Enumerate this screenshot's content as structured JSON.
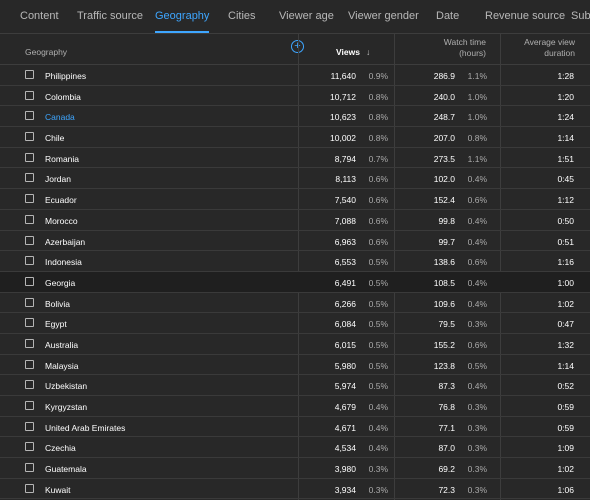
{
  "tabs": [
    {
      "label": "Content",
      "active": false
    },
    {
      "label": "Traffic source",
      "active": false
    },
    {
      "label": "Geography",
      "active": true
    },
    {
      "label": "Cities",
      "active": false
    },
    {
      "label": "Viewer age",
      "active": false
    },
    {
      "label": "Viewer gender",
      "active": false
    },
    {
      "label": "Date",
      "active": false
    },
    {
      "label": "Revenue source",
      "active": false
    },
    {
      "label": "Subs",
      "active": false
    }
  ],
  "header": {
    "geography": "Geography",
    "views": "Views",
    "sort_icon": "arrow-down-icon",
    "watch_time_line1": "Watch time",
    "watch_time_line2": "(hours)",
    "avg_view_line1": "Average view",
    "avg_view_line2": "duration",
    "add_icon": "plus-circle-icon"
  },
  "colors": {
    "accent": "#3ea6ff",
    "background": "#282828",
    "highlight_row": "#1f1f1f"
  },
  "rows": [
    {
      "country": "Philippines",
      "views": "11,640",
      "views_pct": "0.9%",
      "watch": "286.9",
      "watch_pct": "1.1%",
      "avg": "1:28",
      "link": false,
      "highlight": false
    },
    {
      "country": "Colombia",
      "views": "10,712",
      "views_pct": "0.8%",
      "watch": "240.0",
      "watch_pct": "1.0%",
      "avg": "1:20",
      "link": false,
      "highlight": false
    },
    {
      "country": "Canada",
      "views": "10,623",
      "views_pct": "0.8%",
      "watch": "248.7",
      "watch_pct": "1.0%",
      "avg": "1:24",
      "link": true,
      "highlight": false
    },
    {
      "country": "Chile",
      "views": "10,002",
      "views_pct": "0.8%",
      "watch": "207.0",
      "watch_pct": "0.8%",
      "avg": "1:14",
      "link": false,
      "highlight": false
    },
    {
      "country": "Romania",
      "views": "8,794",
      "views_pct": "0.7%",
      "watch": "273.5",
      "watch_pct": "1.1%",
      "avg": "1:51",
      "link": false,
      "highlight": false
    },
    {
      "country": "Jordan",
      "views": "8,113",
      "views_pct": "0.6%",
      "watch": "102.0",
      "watch_pct": "0.4%",
      "avg": "0:45",
      "link": false,
      "highlight": false
    },
    {
      "country": "Ecuador",
      "views": "7,540",
      "views_pct": "0.6%",
      "watch": "152.4",
      "watch_pct": "0.6%",
      "avg": "1:12",
      "link": false,
      "highlight": false
    },
    {
      "country": "Morocco",
      "views": "7,088",
      "views_pct": "0.6%",
      "watch": "99.8",
      "watch_pct": "0.4%",
      "avg": "0:50",
      "link": false,
      "highlight": false
    },
    {
      "country": "Azerbaijan",
      "views": "6,963",
      "views_pct": "0.6%",
      "watch": "99.7",
      "watch_pct": "0.4%",
      "avg": "0:51",
      "link": false,
      "highlight": false
    },
    {
      "country": "Indonesia",
      "views": "6,553",
      "views_pct": "0.5%",
      "watch": "138.6",
      "watch_pct": "0.6%",
      "avg": "1:16",
      "link": false,
      "highlight": false
    },
    {
      "country": "Georgia",
      "views": "6,491",
      "views_pct": "0.5%",
      "watch": "108.5",
      "watch_pct": "0.4%",
      "avg": "1:00",
      "link": false,
      "highlight": true
    },
    {
      "country": "Bolivia",
      "views": "6,266",
      "views_pct": "0.5%",
      "watch": "109.6",
      "watch_pct": "0.4%",
      "avg": "1:02",
      "link": false,
      "highlight": false
    },
    {
      "country": "Egypt",
      "views": "6,084",
      "views_pct": "0.5%",
      "watch": "79.5",
      "watch_pct": "0.3%",
      "avg": "0:47",
      "link": false,
      "highlight": false
    },
    {
      "country": "Australia",
      "views": "6,015",
      "views_pct": "0.5%",
      "watch": "155.2",
      "watch_pct": "0.6%",
      "avg": "1:32",
      "link": false,
      "highlight": false
    },
    {
      "country": "Malaysia",
      "views": "5,980",
      "views_pct": "0.5%",
      "watch": "123.8",
      "watch_pct": "0.5%",
      "avg": "1:14",
      "link": false,
      "highlight": false
    },
    {
      "country": "Uzbekistan",
      "views": "5,974",
      "views_pct": "0.5%",
      "watch": "87.3",
      "watch_pct": "0.4%",
      "avg": "0:52",
      "link": false,
      "highlight": false
    },
    {
      "country": "Kyrgyzstan",
      "views": "4,679",
      "views_pct": "0.4%",
      "watch": "76.8",
      "watch_pct": "0.3%",
      "avg": "0:59",
      "link": false,
      "highlight": false
    },
    {
      "country": "United Arab Emirates",
      "views": "4,671",
      "views_pct": "0.4%",
      "watch": "77.1",
      "watch_pct": "0.3%",
      "avg": "0:59",
      "link": false,
      "highlight": false
    },
    {
      "country": "Czechia",
      "views": "4,534",
      "views_pct": "0.4%",
      "watch": "87.0",
      "watch_pct": "0.3%",
      "avg": "1:09",
      "link": false,
      "highlight": false
    },
    {
      "country": "Guatemala",
      "views": "3,980",
      "views_pct": "0.3%",
      "watch": "69.2",
      "watch_pct": "0.3%",
      "avg": "1:02",
      "link": false,
      "highlight": false
    },
    {
      "country": "Kuwait",
      "views": "3,934",
      "views_pct": "0.3%",
      "watch": "72.3",
      "watch_pct": "0.3%",
      "avg": "1:06",
      "link": false,
      "highlight": false
    }
  ]
}
